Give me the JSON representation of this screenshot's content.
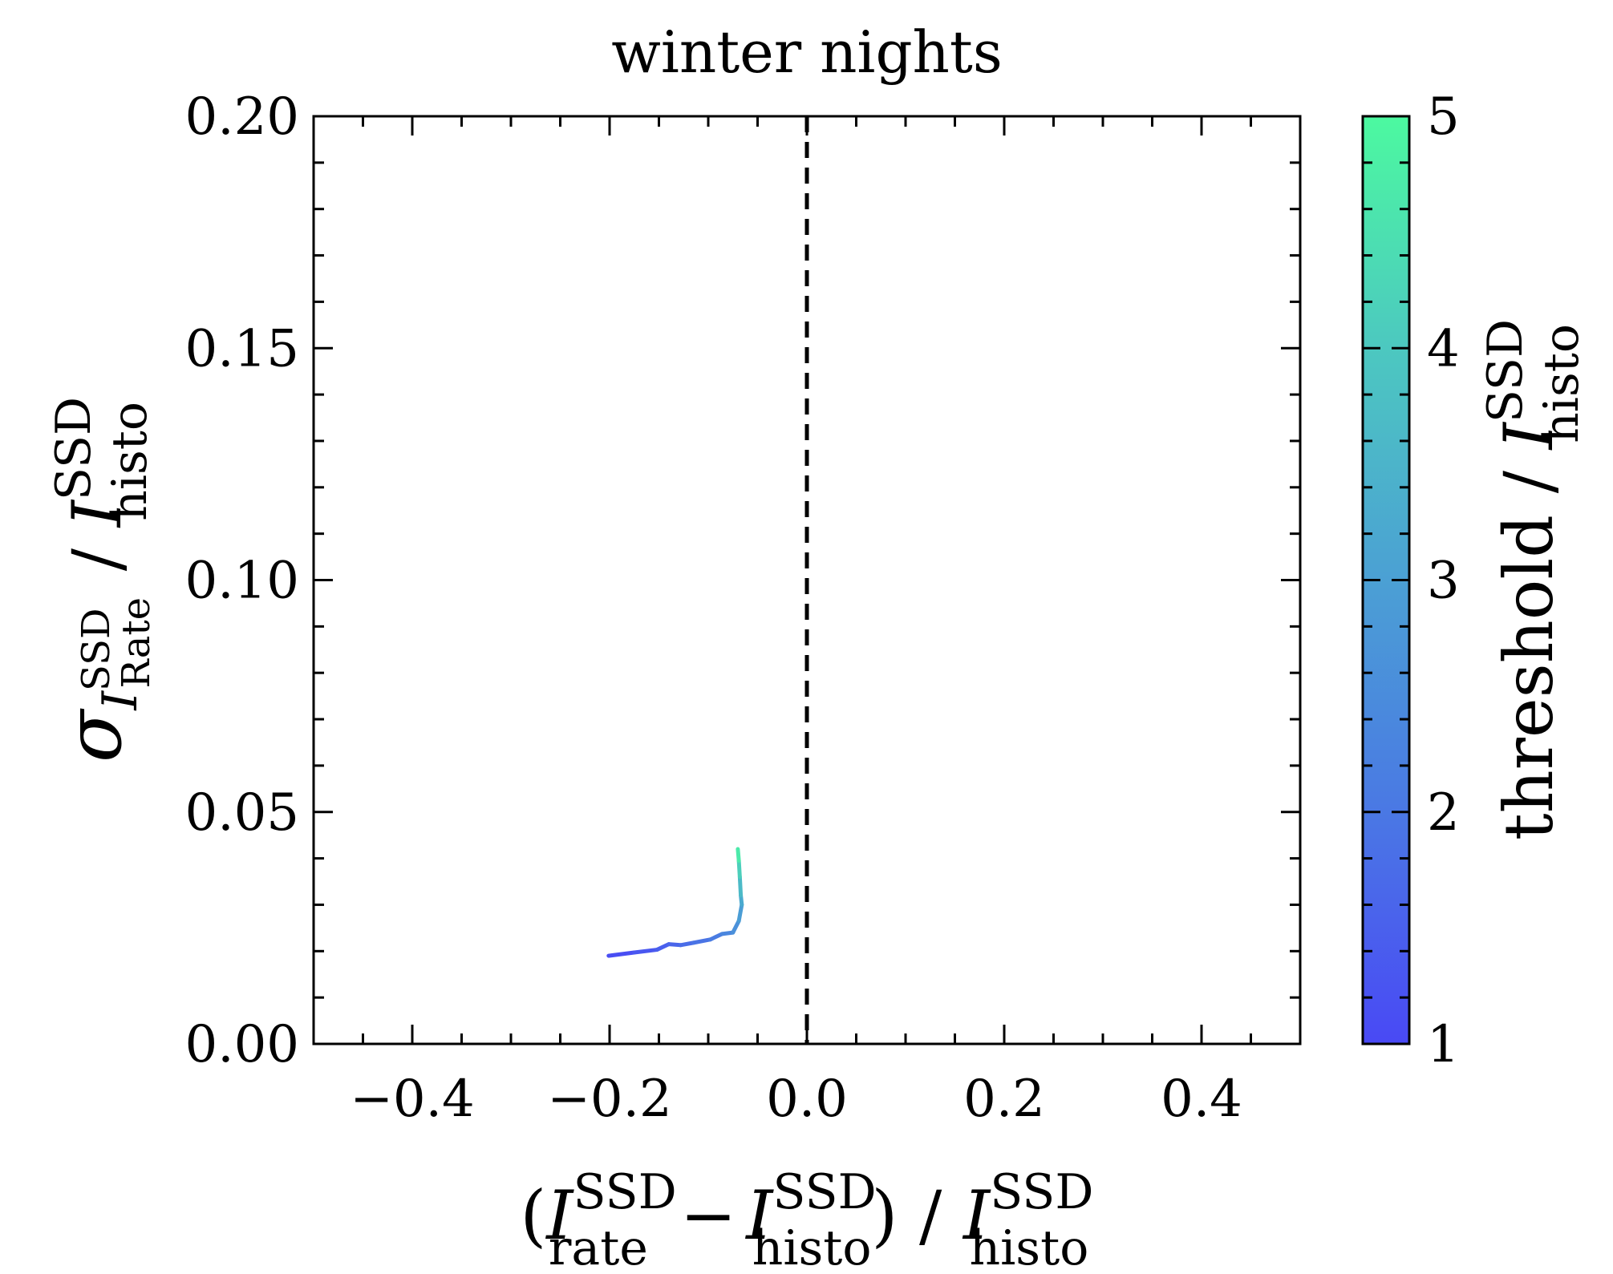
{
  "chart_data": {
    "type": "line",
    "title": "winter nights",
    "xlabel": {
      "prefix": "(",
      "var1": "I",
      "sup1": "SSD",
      "sub1": "rate",
      "minus": "−",
      "var2": "I",
      "sup2": "SSD",
      "sub2": "histo",
      "suffix": ") / ",
      "var3": "I",
      "sup3": "SSD",
      "sub3": "histo"
    },
    "ylabel": {
      "sigma": "σ",
      "var_sub": "I",
      "sup": "SSD",
      "sub": "Rate",
      "slash": " / ",
      "var2": "I",
      "sup2": "SSD",
      "sub2": "histo"
    },
    "colorbar_label": {
      "text": "threshold / ",
      "var": "I",
      "sup": "SSD",
      "sub": "histo"
    },
    "xlim": [
      -0.5,
      0.5
    ],
    "ylim": [
      0.0,
      0.2
    ],
    "clim": [
      1,
      5
    ],
    "x_ticks": [
      {
        "value": -0.4,
        "label": "−0.4"
      },
      {
        "value": -0.2,
        "label": "−0.2"
      },
      {
        "value": 0.0,
        "label": "0.0"
      },
      {
        "value": 0.2,
        "label": "0.2"
      },
      {
        "value": 0.4,
        "label": "0.4"
      }
    ],
    "y_ticks": [
      {
        "value": 0.0,
        "label": "0.00"
      },
      {
        "value": 0.05,
        "label": "0.05"
      },
      {
        "value": 0.1,
        "label": "0.10"
      },
      {
        "value": 0.15,
        "label": "0.15"
      },
      {
        "value": 0.2,
        "label": "0.20"
      }
    ],
    "c_ticks": [
      {
        "value": 1,
        "label": "1"
      },
      {
        "value": 2,
        "label": "2"
      },
      {
        "value": 3,
        "label": "3"
      },
      {
        "value": 4,
        "label": "4"
      },
      {
        "value": 5,
        "label": "5"
      }
    ],
    "colormap": [
      "#4949f5",
      "#4a78e4",
      "#4ba0d4",
      "#4cc8c0",
      "#4cf9a0"
    ],
    "reference_line": {
      "x": 0.0,
      "style": "dashed",
      "color": "#000000"
    },
    "series": [
      {
        "points": [
          {
            "x": -0.201,
            "y": 0.019,
            "c": 1.0
          },
          {
            "x": -0.175,
            "y": 0.0197,
            "c": 1.2
          },
          {
            "x": -0.152,
            "y": 0.0203,
            "c": 1.4
          },
          {
            "x": -0.14,
            "y": 0.0215,
            "c": 1.55
          },
          {
            "x": -0.128,
            "y": 0.0213,
            "c": 1.7
          },
          {
            "x": -0.115,
            "y": 0.0218,
            "c": 1.85
          },
          {
            "x": -0.098,
            "y": 0.0225,
            "c": 2.0
          },
          {
            "x": -0.086,
            "y": 0.0237,
            "c": 2.2
          },
          {
            "x": -0.075,
            "y": 0.024,
            "c": 2.5
          },
          {
            "x": -0.069,
            "y": 0.0265,
            "c": 2.75
          },
          {
            "x": -0.066,
            "y": 0.03,
            "c": 3.1
          },
          {
            "x": -0.067,
            "y": 0.032,
            "c": 3.4
          },
          {
            "x": -0.068,
            "y": 0.036,
            "c": 3.9
          },
          {
            "x": -0.069,
            "y": 0.0395,
            "c": 4.4
          },
          {
            "x": -0.07,
            "y": 0.042,
            "c": 5.0
          }
        ]
      }
    ]
  }
}
